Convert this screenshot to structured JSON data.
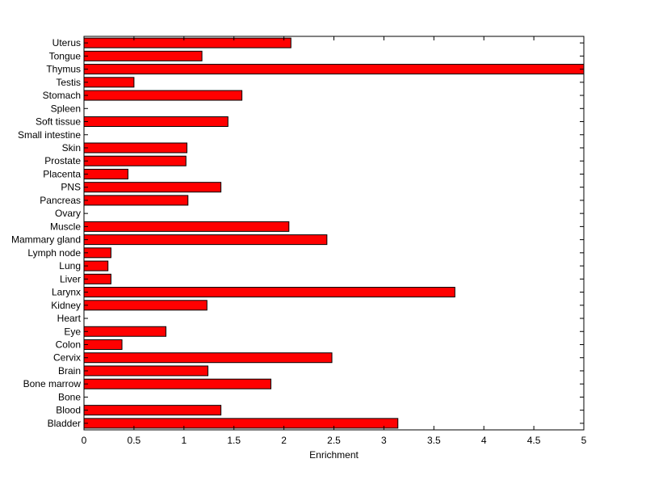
{
  "chart_data": {
    "type": "bar",
    "orientation": "horizontal",
    "title": "",
    "xlabel": "Enrichment",
    "ylabel": "",
    "xlim": [
      0,
      5
    ],
    "x_ticks": [
      0,
      0.5,
      1,
      1.5,
      2,
      2.5,
      3,
      3.5,
      4,
      4.5,
      5
    ],
    "x_tick_labels": [
      "0",
      "0.5",
      "1",
      "1.5",
      "2",
      "2.5",
      "3",
      "3.5",
      "4",
      "4.5",
      "5"
    ],
    "grid": false,
    "bar_color": "#ff0000",
    "bar_edge_color": "#000000",
    "categories": [
      "Bladder",
      "Blood",
      "Bone",
      "Bone marrow",
      "Brain",
      "Cervix",
      "Colon",
      "Eye",
      "Heart",
      "Kidney",
      "Larynx",
      "Liver",
      "Lung",
      "Lymph node",
      "Mammary gland",
      "Muscle",
      "Ovary",
      "Pancreas",
      "PNS",
      "Placenta",
      "Prostate",
      "Skin",
      "Small intestine",
      "Soft tissue",
      "Spleen",
      "Stomach",
      "Testis",
      "Thymus",
      "Tongue",
      "Uterus"
    ],
    "values": [
      3.14,
      1.37,
      0,
      1.87,
      1.24,
      2.48,
      0.38,
      0.82,
      0,
      1.23,
      3.71,
      0.27,
      0.24,
      0.27,
      2.43,
      2.05,
      0,
      1.04,
      1.37,
      0.44,
      1.02,
      1.03,
      0,
      1.44,
      0,
      1.58,
      0.5,
      5.0,
      1.18,
      2.07
    ]
  }
}
